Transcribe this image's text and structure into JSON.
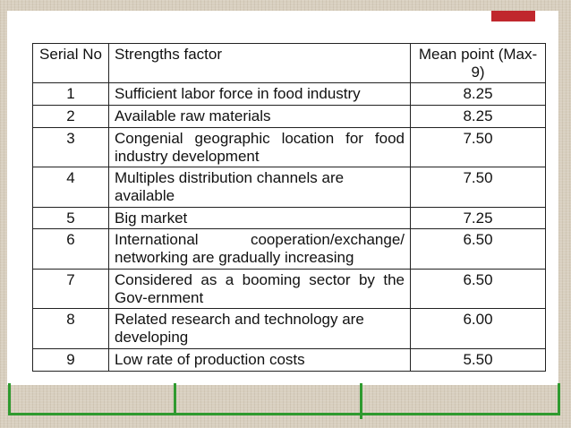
{
  "table": {
    "headers": {
      "serial": "Serial No",
      "factor": "Strengths factor",
      "mean": "Mean point (Max- 9)"
    },
    "rows": [
      {
        "serial": "1",
        "factor": "Sufficient labor force in food industry",
        "mean": "8.25"
      },
      {
        "serial": "2",
        "factor": "Available raw materials",
        "mean": "8.25"
      },
      {
        "serial": "3",
        "factor": "Congenial geographic location for food industry development",
        "mean": "7.50"
      },
      {
        "serial": "4",
        "factor": "Multiples distribution channels are available",
        "mean": "7.50"
      },
      {
        "serial": "5",
        "factor": "Big market",
        "mean": "7.25"
      },
      {
        "serial": "6",
        "factor": "International cooperation/exchange/ networking are gradually increasing",
        "mean": "6.50"
      },
      {
        "serial": "7",
        "factor": "Considered as a booming sector by the Gov-ernment",
        "mean": "6.50"
      },
      {
        "serial": "8",
        "factor": "Related research and technology are developing",
        "mean": "6.00"
      },
      {
        "serial": "9",
        "factor": "Low rate of production costs",
        "mean": "5.50"
      }
    ]
  },
  "colors": {
    "background": "#d8cfbf",
    "slide": "#ffffff",
    "accent_red": "#c0272d",
    "accent_green": "#2f9a2f"
  }
}
